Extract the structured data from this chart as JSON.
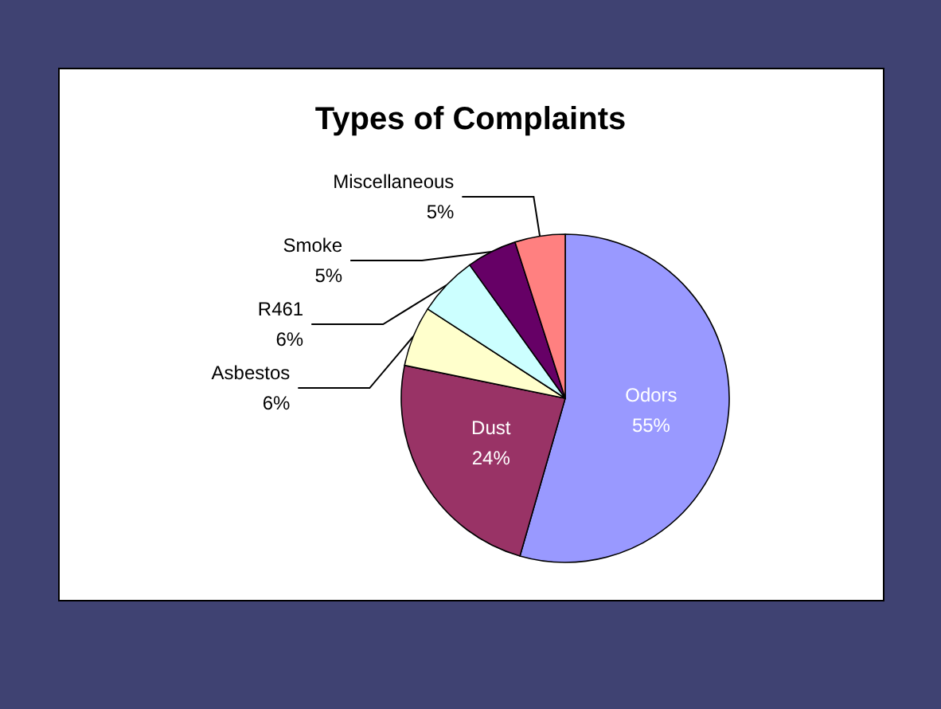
{
  "chart_data": {
    "type": "pie",
    "title": "Types of Complaints",
    "categories": [
      "Odors",
      "Dust",
      "Asbestos",
      "R461",
      "Smoke",
      "Miscellaneous"
    ],
    "values": [
      55,
      24,
      6,
      6,
      5,
      5
    ],
    "colors": [
      "#9999ff",
      "#993366",
      "#ffffcc",
      "#ccffff",
      "#660066",
      "#ff8080"
    ],
    "value_labels": [
      "55%",
      "24%",
      "6%",
      "6%",
      "5%",
      "5%"
    ],
    "legend": false
  }
}
